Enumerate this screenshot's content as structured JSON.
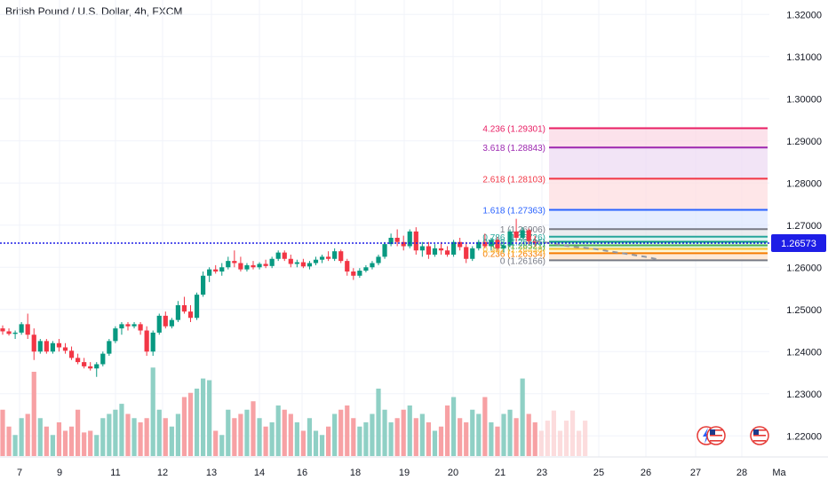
{
  "chart_data": {
    "type": "candlestick",
    "title": "British Pound / U.S. Dollar, 4h, FXCM",
    "y_axis": {
      "min": 1.215,
      "max": 1.323,
      "ticks": [
        "1.32000",
        "1.31000",
        "1.30000",
        "1.29000",
        "1.28000",
        "1.27000",
        "1.26000",
        "1.25000",
        "1.24000",
        "1.23000",
        "1.22000"
      ]
    },
    "x_axis": {
      "ticks": [
        "7",
        "9",
        "11",
        "12",
        "13",
        "14",
        "16",
        "18",
        "19",
        "20",
        "21",
        "23",
        "25",
        "26",
        "27",
        "28",
        "Ma"
      ]
    },
    "current_price": {
      "value": 1.26573,
      "label": "1.26573"
    },
    "fib_levels": [
      {
        "ratio": 0,
        "price": 1.26166,
        "label": "0 (1.26166)",
        "color": "#787b86"
      },
      {
        "ratio": 0.236,
        "price": 1.26334,
        "label": "0.236 (1.26334)",
        "color": "#f57c00"
      },
      {
        "ratio": 0.382,
        "price": 1.26438,
        "label": "0.382 (1.26438)",
        "color": "#fbc02d"
      },
      {
        "ratio": 0.5,
        "price": 1.26521,
        "label": "0.5 (1.26521)",
        "color": "#4caf50"
      },
      {
        "ratio": 0.618,
        "price": 1.26605,
        "label": "0.618 (1.26605)",
        "color": "#089981"
      },
      {
        "ratio": 0.786,
        "price": 1.26726,
        "label": "0.786 (1.26726)",
        "color": "#26a69a"
      },
      {
        "ratio": 1,
        "price": 1.26906,
        "label": "1 (1.26906)",
        "color": "#787b86"
      },
      {
        "ratio": 1.618,
        "price": 1.27363,
        "label": "1.618 (1.27363)",
        "color": "#2962ff"
      },
      {
        "ratio": 2.618,
        "price": 1.28103,
        "label": "2.618 (1.28103)",
        "color": "#f23645"
      },
      {
        "ratio": 3.618,
        "price": 1.28843,
        "label": "3.618 (1.28843)",
        "color": "#9c27b0"
      },
      {
        "ratio": 4.236,
        "price": 1.29301,
        "label": "4.236 (1.29301)",
        "color": "#e91e63"
      }
    ],
    "candles": [
      [
        1.2455,
        1.2462,
        1.244,
        1.2448
      ],
      [
        1.2448,
        1.2455,
        1.2438,
        1.2442
      ],
      [
        1.2442,
        1.245,
        1.243,
        1.2445
      ],
      [
        1.2445,
        1.247,
        1.244,
        1.2465
      ],
      [
        1.2465,
        1.249,
        1.243,
        1.244
      ],
      [
        1.244,
        1.2455,
        1.238,
        1.24
      ],
      [
        1.24,
        1.243,
        1.2395,
        1.2425
      ],
      [
        1.2425,
        1.243,
        1.2395,
        1.24
      ],
      [
        1.24,
        1.2425,
        1.2395,
        1.242
      ],
      [
        1.242,
        1.243,
        1.24,
        1.241
      ],
      [
        1.241,
        1.242,
        1.2395,
        1.2402
      ],
      [
        1.2402,
        1.2412,
        1.238,
        1.2385
      ],
      [
        1.2385,
        1.2395,
        1.237,
        1.2375
      ],
      [
        1.2375,
        1.2385,
        1.236,
        1.2365
      ],
      [
        1.2365,
        1.2375,
        1.2355,
        1.236
      ],
      [
        1.236,
        1.2375,
        1.234,
        1.237
      ],
      [
        1.237,
        1.24,
        1.2365,
        1.2395
      ],
      [
        1.2395,
        1.243,
        1.239,
        1.2425
      ],
      [
        1.2425,
        1.246,
        1.242,
        1.2455
      ],
      [
        1.2455,
        1.247,
        1.244,
        1.2465
      ],
      [
        1.2465,
        1.247,
        1.245,
        1.246
      ],
      [
        1.246,
        1.247,
        1.2455,
        1.2465
      ],
      [
        1.2465,
        1.247,
        1.244,
        1.245
      ],
      [
        1.245,
        1.246,
        1.239,
        1.24
      ],
      [
        1.24,
        1.245,
        1.239,
        1.2445
      ],
      [
        1.2445,
        1.249,
        1.244,
        1.2485
      ],
      [
        1.2485,
        1.2495,
        1.2455,
        1.246
      ],
      [
        1.246,
        1.248,
        1.2455,
        1.2475
      ],
      [
        1.2475,
        1.252,
        1.247,
        1.251
      ],
      [
        1.251,
        1.253,
        1.249,
        1.2495
      ],
      [
        1.2495,
        1.251,
        1.247,
        1.248
      ],
      [
        1.248,
        1.254,
        1.2475,
        1.2535
      ],
      [
        1.2535,
        1.259,
        1.253,
        1.258
      ],
      [
        1.258,
        1.26,
        1.2565,
        1.2595
      ],
      [
        1.2595,
        1.2605,
        1.2585,
        1.259
      ],
      [
        1.259,
        1.261,
        1.258,
        1.26
      ],
      [
        1.26,
        1.2625,
        1.2595,
        1.2615
      ],
      [
        1.2615,
        1.264,
        1.26,
        1.261
      ],
      [
        1.261,
        1.2625,
        1.259,
        1.2595
      ],
      [
        1.2595,
        1.261,
        1.259,
        1.2605
      ],
      [
        1.2605,
        1.2615,
        1.2595,
        1.26
      ],
      [
        1.26,
        1.2612,
        1.2595,
        1.2608
      ],
      [
        1.2608,
        1.2618,
        1.2598,
        1.2603
      ],
      [
        1.2603,
        1.2625,
        1.2598,
        1.262
      ],
      [
        1.262,
        1.264,
        1.2615,
        1.2635
      ],
      [
        1.2635,
        1.264,
        1.2615,
        1.262
      ],
      [
        1.262,
        1.263,
        1.26,
        1.2608
      ],
      [
        1.2608,
        1.2618,
        1.26,
        1.2612
      ],
      [
        1.2612,
        1.262,
        1.2598,
        1.2602
      ],
      [
        1.2602,
        1.2615,
        1.2595,
        1.261
      ],
      [
        1.261,
        1.2625,
        1.2605,
        1.2618
      ],
      [
        1.2618,
        1.263,
        1.261,
        1.2625
      ],
      [
        1.2625,
        1.2638,
        1.2615,
        1.262
      ],
      [
        1.262,
        1.2645,
        1.2615,
        1.2638
      ],
      [
        1.2638,
        1.2642,
        1.261,
        1.2615
      ],
      [
        1.2615,
        1.262,
        1.258,
        1.259
      ],
      [
        1.259,
        1.2598,
        1.257,
        1.258
      ],
      [
        1.258,
        1.2598,
        1.2575,
        1.2592
      ],
      [
        1.2592,
        1.2605,
        1.2588,
        1.26
      ],
      [
        1.26,
        1.2615,
        1.2595,
        1.261
      ],
      [
        1.261,
        1.263,
        1.2605,
        1.2625
      ],
      [
        1.2625,
        1.266,
        1.262,
        1.2655
      ],
      [
        1.2655,
        1.268,
        1.265,
        1.267
      ],
      [
        1.267,
        1.269,
        1.265,
        1.266
      ],
      [
        1.266,
        1.2675,
        1.264,
        1.265
      ],
      [
        1.265,
        1.269,
        1.2645,
        1.2685
      ],
      [
        1.2685,
        1.2695,
        1.263,
        1.264
      ],
      [
        1.264,
        1.266,
        1.2625,
        1.265
      ],
      [
        1.265,
        1.266,
        1.262,
        1.263
      ],
      [
        1.263,
        1.2655,
        1.2625,
        1.2645
      ],
      [
        1.2645,
        1.266,
        1.263,
        1.264
      ],
      [
        1.264,
        1.265,
        1.2625,
        1.263
      ],
      [
        1.263,
        1.2665,
        1.2625,
        1.266
      ],
      [
        1.266,
        1.267,
        1.264,
        1.2648
      ],
      [
        1.2648,
        1.266,
        1.261,
        1.262
      ],
      [
        1.262,
        1.265,
        1.2615,
        1.2645
      ],
      [
        1.2645,
        1.2665,
        1.264,
        1.266
      ],
      [
        1.266,
        1.268,
        1.2645,
        1.265
      ],
      [
        1.265,
        1.267,
        1.264,
        1.2665
      ],
      [
        1.2665,
        1.2672,
        1.264,
        1.2645
      ],
      [
        1.2645,
        1.266,
        1.2635,
        1.2652
      ],
      [
        1.2652,
        1.269,
        1.2648,
        1.2685
      ],
      [
        1.2685,
        1.2715,
        1.266,
        1.267
      ],
      [
        1.267,
        1.2695,
        1.2665,
        1.2688
      ],
      [
        1.2688,
        1.2692,
        1.2655,
        1.2662
      ],
      [
        1.2662,
        1.2675,
        1.265,
        1.2658
      ]
    ],
    "projection": [
      1.2662,
      1.2658,
      1.2652,
      1.2648,
      1.2645,
      1.264,
      1.2635,
      1.263,
      1.2625,
      1.2618
    ],
    "volumes": [
      0.55,
      0.35,
      0.25,
      0.45,
      0.5,
      1.0,
      0.45,
      0.35,
      0.25,
      0.4,
      0.3,
      0.35,
      0.55,
      0.28,
      0.3,
      0.25,
      0.45,
      0.5,
      0.55,
      0.62,
      0.5,
      0.45,
      0.4,
      0.45,
      1.05,
      0.55,
      0.45,
      0.35,
      0.5,
      0.7,
      0.75,
      0.8,
      0.92,
      0.9,
      0.3,
      0.25,
      0.55,
      0.45,
      0.5,
      0.55,
      0.65,
      0.45,
      0.35,
      0.4,
      0.6,
      0.55,
      0.5,
      0.4,
      0.3,
      0.45,
      0.3,
      0.25,
      0.35,
      0.5,
      0.55,
      0.6,
      0.45,
      0.35,
      0.4,
      0.5,
      0.8,
      0.55,
      0.4,
      0.45,
      0.55,
      0.6,
      0.45,
      0.5,
      0.4,
      0.3,
      0.35,
      0.6,
      0.7,
      0.45,
      0.4,
      0.55,
      0.5,
      0.7,
      0.4,
      0.35,
      0.5,
      0.55,
      0.45,
      0.92,
      0.5,
      0.4
    ],
    "series_colors": {
      "up": "#089981",
      "down": "#f23645",
      "volume_up": "#8fd0c5",
      "volume_down": "#f7a1a4",
      "price_line": "#1e1ee6"
    },
    "grid": true,
    "icons": [
      "flash-event-icon",
      "us-flag-event-icon",
      "us-flag-event-icon"
    ]
  }
}
